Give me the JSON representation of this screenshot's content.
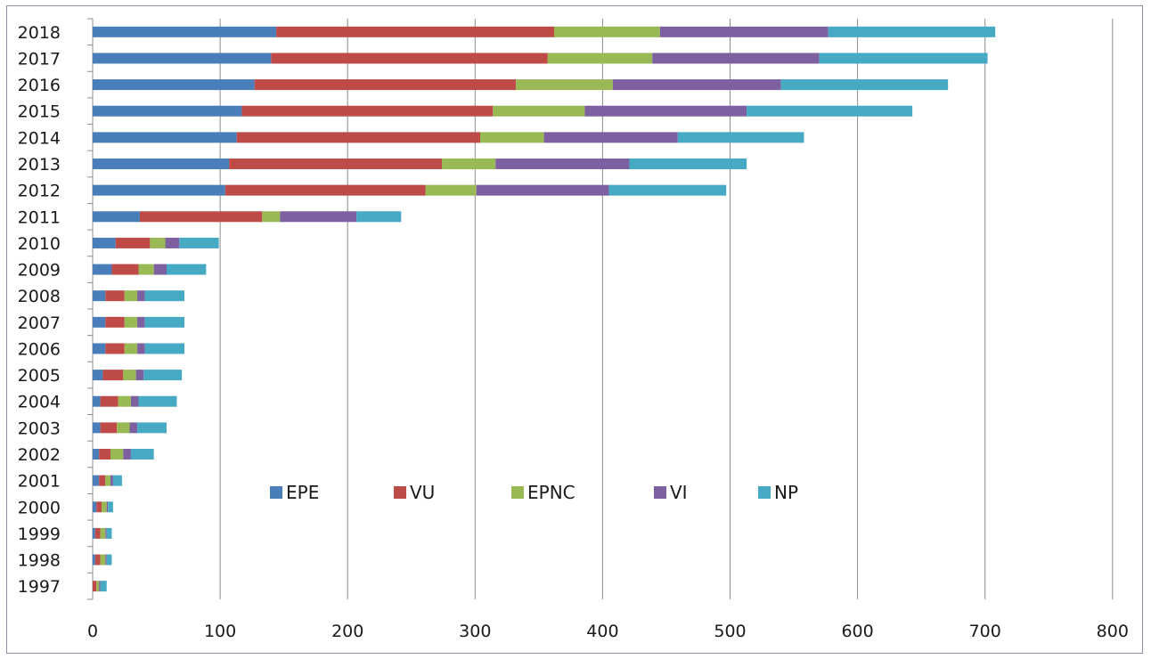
{
  "chart_data": {
    "type": "bar",
    "orientation": "horizontal",
    "stacked": true,
    "title": "",
    "xlabel": "",
    "ylabel": "",
    "xlim": [
      0,
      800
    ],
    "x_ticks": [
      0,
      100,
      200,
      300,
      400,
      500,
      600,
      700,
      800
    ],
    "grid": "vertical",
    "legend_position": "center",
    "categories": [
      "1997",
      "1998",
      "1999",
      "2000",
      "2001",
      "2002",
      "2003",
      "2004",
      "2005",
      "2006",
      "2007",
      "2008",
      "2009",
      "2010",
      "2011",
      "2012",
      "2013",
      "2014",
      "2015",
      "2016",
      "2017",
      "2018"
    ],
    "series": [
      {
        "name": "EPE",
        "color": "#4a7ebb",
        "values": [
          0,
          2,
          2,
          3,
          5,
          5,
          6,
          6,
          8,
          10,
          10,
          10,
          15,
          18,
          37,
          104,
          107,
          113,
          117,
          127,
          140,
          144
        ]
      },
      {
        "name": "VU",
        "color": "#be4b48",
        "values": [
          3,
          4,
          4,
          4,
          5,
          9,
          13,
          14,
          16,
          15,
          15,
          15,
          21,
          27,
          96,
          157,
          167,
          191,
          197,
          205,
          217,
          218
        ]
      },
      {
        "name": "EPNC",
        "color": "#98b954",
        "values": [
          2,
          4,
          4,
          4,
          4,
          10,
          10,
          10,
          10,
          10,
          10,
          10,
          12,
          12,
          14,
          40,
          42,
          50,
          72,
          76,
          82,
          83
        ]
      },
      {
        "name": "VI",
        "color": "#7d60a0",
        "values": [
          1,
          1,
          1,
          1,
          2,
          6,
          6,
          6,
          6,
          6,
          6,
          6,
          10,
          11,
          60,
          104,
          105,
          105,
          127,
          132,
          131,
          132
        ]
      },
      {
        "name": "NP",
        "color": "#46aac5",
        "values": [
          5,
          4,
          4,
          4,
          7,
          18,
          23,
          30,
          30,
          31,
          31,
          31,
          31,
          31,
          35,
          92,
          92,
          99,
          130,
          131,
          132,
          131
        ]
      }
    ]
  }
}
